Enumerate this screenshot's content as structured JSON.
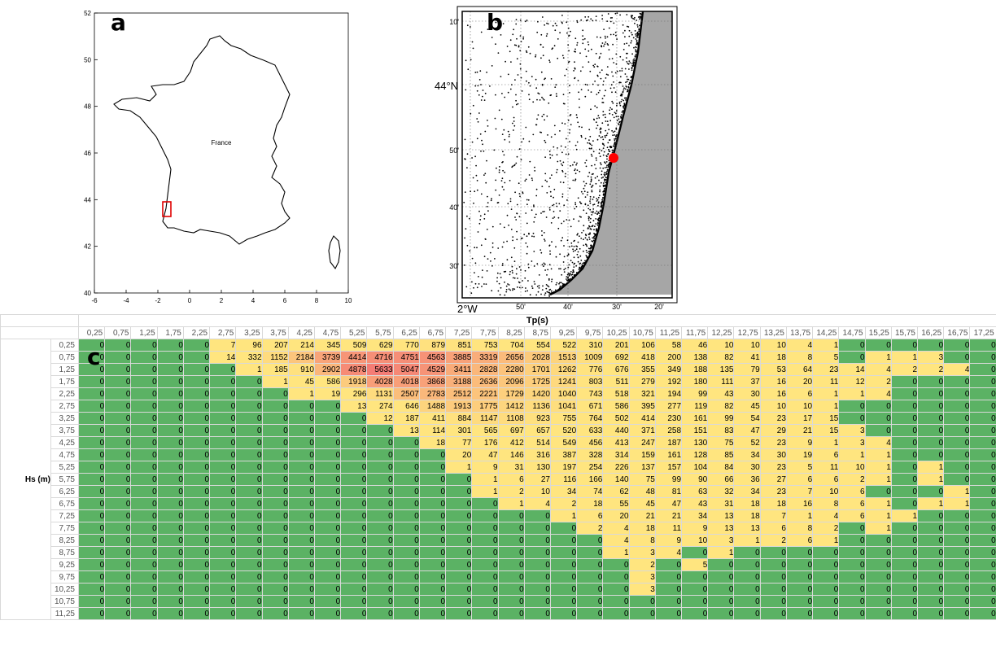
{
  "panels": {
    "a": "a",
    "b": "b",
    "c": "c"
  },
  "mapA": {
    "country_label": "France",
    "x_ticks": [
      "-6",
      "-4",
      "-2",
      "0",
      "2",
      "4",
      "6",
      "8",
      "10"
    ],
    "y_ticks": [
      "40",
      "42",
      "44",
      "46",
      "48",
      "50",
      "52"
    ]
  },
  "mapB": {
    "lat_label_main": "44°N",
    "lat_ticks": [
      "10'",
      "50'",
      "40'",
      "30'"
    ],
    "lon_label_main": "2°W",
    "lon_ticks": [
      "50'",
      "40'",
      "30'",
      "20'"
    ]
  },
  "table": {
    "title": "Tp(s)",
    "row_axis_label": "Hs (m)",
    "tp_values": [
      "0,25",
      "0,75",
      "1,25",
      "1,75",
      "2,25",
      "2,75",
      "3,25",
      "3,75",
      "4,25",
      "4,75",
      "5,25",
      "5,75",
      "6,25",
      "6,75",
      "7,25",
      "7,75",
      "8,25",
      "8,75",
      "9,25",
      "9,75",
      "10,25",
      "10,75",
      "11,25",
      "11,75",
      "12,25",
      "12,75",
      "13,25",
      "13,75",
      "14,25",
      "14,75",
      "15,25",
      "15,75",
      "16,25",
      "16,75",
      "17,25"
    ],
    "hs_values": [
      "0,25",
      "0,75",
      "1,25",
      "1,75",
      "2,25",
      "2,75",
      "3,25",
      "3,75",
      "4,25",
      "4,75",
      "5,25",
      "5,75",
      "6,25",
      "6,75",
      "7,25",
      "7,75",
      "8,25",
      "8,75",
      "9,25",
      "9,75",
      "10,25",
      "10,75",
      "11,25"
    ],
    "rows": [
      [
        0,
        0,
        0,
        0,
        0,
        7,
        96,
        207,
        214,
        345,
        509,
        629,
        770,
        879,
        851,
        753,
        704,
        554,
        522,
        310,
        201,
        106,
        58,
        46,
        10,
        10,
        10,
        4,
        1,
        0,
        0,
        0,
        0,
        0,
        0
      ],
      [
        0,
        0,
        0,
        0,
        0,
        14,
        332,
        1152,
        2184,
        3739,
        4414,
        4716,
        4751,
        4563,
        3885,
        3319,
        2656,
        2028,
        1513,
        1009,
        692,
        418,
        200,
        138,
        82,
        41,
        18,
        8,
        5,
        0,
        1,
        1,
        3,
        0,
        0
      ],
      [
        0,
        0,
        0,
        0,
        0,
        0,
        1,
        185,
        910,
        2902,
        4878,
        5633,
        5047,
        4529,
        3411,
        2828,
        2280,
        1701,
        1262,
        776,
        676,
        355,
        349,
        188,
        135,
        79,
        53,
        64,
        23,
        14,
        4,
        2,
        2,
        4,
        0
      ],
      [
        0,
        0,
        0,
        0,
        0,
        0,
        0,
        1,
        45,
        586,
        1918,
        4028,
        4018,
        3868,
        3188,
        2636,
        2096,
        1725,
        1241,
        803,
        511,
        279,
        192,
        180,
        111,
        37,
        16,
        20,
        11,
        12,
        2,
        0,
        0,
        0,
        0
      ],
      [
        0,
        0,
        0,
        0,
        0,
        0,
        0,
        0,
        1,
        19,
        296,
        1131,
        2507,
        2783,
        2512,
        2221,
        1729,
        1420,
        1040,
        743,
        518,
        321,
        194,
        99,
        43,
        30,
        16,
        6,
        1,
        1,
        4,
        0,
        0,
        0,
        0
      ],
      [
        0,
        0,
        0,
        0,
        0,
        0,
        0,
        0,
        0,
        0,
        13,
        274,
        646,
        1488,
        1913,
        1775,
        1412,
        1136,
        1041,
        671,
        586,
        395,
        277,
        119,
        82,
        45,
        10,
        10,
        1,
        0,
        0,
        0,
        0,
        0,
        0
      ],
      [
        0,
        0,
        0,
        0,
        0,
        0,
        0,
        0,
        0,
        0,
        0,
        12,
        187,
        411,
        884,
        1147,
        1108,
        923,
        755,
        764,
        502,
        414,
        230,
        161,
        99,
        54,
        23,
        17,
        15,
        0,
        0,
        0,
        0,
        0,
        0
      ],
      [
        0,
        0,
        0,
        0,
        0,
        0,
        0,
        0,
        0,
        0,
        0,
        0,
        13,
        114,
        301,
        565,
        697,
        657,
        520,
        633,
        440,
        371,
        258,
        151,
        83,
        47,
        29,
        21,
        15,
        3,
        0,
        0,
        0,
        0,
        0
      ],
      [
        0,
        0,
        0,
        0,
        0,
        0,
        0,
        0,
        0,
        0,
        0,
        0,
        0,
        18,
        77,
        176,
        412,
        514,
        549,
        456,
        413,
        247,
        187,
        130,
        75,
        52,
        23,
        9,
        1,
        3,
        4,
        0,
        0,
        0,
        0
      ],
      [
        0,
        0,
        0,
        0,
        0,
        0,
        0,
        0,
        0,
        0,
        0,
        0,
        0,
        0,
        20,
        47,
        146,
        316,
        387,
        328,
        314,
        159,
        161,
        128,
        85,
        34,
        30,
        19,
        6,
        1,
        1,
        0,
        0,
        0,
        0
      ],
      [
        0,
        0,
        0,
        0,
        0,
        0,
        0,
        0,
        0,
        0,
        0,
        0,
        0,
        0,
        1,
        9,
        31,
        130,
        197,
        254,
        226,
        137,
        157,
        104,
        84,
        30,
        23,
        5,
        11,
        10,
        1,
        0,
        1,
        0,
        0
      ],
      [
        0,
        0,
        0,
        0,
        0,
        0,
        0,
        0,
        0,
        0,
        0,
        0,
        0,
        0,
        0,
        1,
        6,
        27,
        116,
        166,
        140,
        75,
        99,
        90,
        66,
        36,
        27,
        6,
        6,
        2,
        1,
        0,
        1,
        0,
        0
      ],
      [
        0,
        0,
        0,
        0,
        0,
        0,
        0,
        0,
        0,
        0,
        0,
        0,
        0,
        0,
        0,
        1,
        2,
        10,
        34,
        74,
        62,
        48,
        81,
        63,
        32,
        34,
        23,
        7,
        10,
        6,
        0,
        0,
        0,
        1,
        0
      ],
      [
        0,
        0,
        0,
        0,
        0,
        0,
        0,
        0,
        0,
        0,
        0,
        0,
        0,
        0,
        0,
        0,
        1,
        4,
        2,
        18,
        55,
        45,
        47,
        43,
        31,
        18,
        18,
        16,
        8,
        6,
        1,
        0,
        1,
        1,
        0
      ],
      [
        0,
        0,
        0,
        0,
        0,
        0,
        0,
        0,
        0,
        0,
        0,
        0,
        0,
        0,
        0,
        0,
        0,
        0,
        1,
        6,
        20,
        21,
        21,
        34,
        13,
        18,
        7,
        1,
        4,
        6,
        1,
        1,
        0,
        0,
        0
      ],
      [
        0,
        0,
        0,
        0,
        0,
        0,
        0,
        0,
        0,
        0,
        0,
        0,
        0,
        0,
        0,
        0,
        0,
        0,
        0,
        2,
        4,
        18,
        11,
        9,
        13,
        13,
        6,
        8,
        2,
        0,
        1,
        0,
        0,
        0,
        0
      ],
      [
        0,
        0,
        0,
        0,
        0,
        0,
        0,
        0,
        0,
        0,
        0,
        0,
        0,
        0,
        0,
        0,
        0,
        0,
        0,
        0,
        4,
        8,
        9,
        10,
        3,
        1,
        2,
        6,
        1,
        0,
        0,
        0,
        0,
        0,
        0
      ],
      [
        0,
        0,
        0,
        0,
        0,
        0,
        0,
        0,
        0,
        0,
        0,
        0,
        0,
        0,
        0,
        0,
        0,
        0,
        0,
        0,
        1,
        3,
        4,
        0,
        1,
        0,
        0,
        0,
        0,
        0,
        0,
        0,
        0,
        0,
        0
      ],
      [
        0,
        0,
        0,
        0,
        0,
        0,
        0,
        0,
        0,
        0,
        0,
        0,
        0,
        0,
        0,
        0,
        0,
        0,
        0,
        0,
        0,
        2,
        0,
        5,
        0,
        0,
        0,
        0,
        0,
        0,
        0,
        0,
        0,
        0,
        0
      ],
      [
        0,
        0,
        0,
        0,
        0,
        0,
        0,
        0,
        0,
        0,
        0,
        0,
        0,
        0,
        0,
        0,
        0,
        0,
        0,
        0,
        0,
        3,
        0,
        0,
        0,
        0,
        0,
        0,
        0,
        0,
        0,
        0,
        0,
        0,
        0
      ],
      [
        0,
        0,
        0,
        0,
        0,
        0,
        0,
        0,
        0,
        0,
        0,
        0,
        0,
        0,
        0,
        0,
        0,
        0,
        0,
        0,
        0,
        3,
        0,
        0,
        0,
        0,
        0,
        0,
        0,
        0,
        0,
        0,
        0,
        0,
        0
      ],
      [
        0,
        0,
        0,
        0,
        0,
        0,
        0,
        0,
        0,
        0,
        0,
        0,
        0,
        0,
        0,
        0,
        0,
        0,
        0,
        0,
        0,
        0,
        0,
        0,
        0,
        0,
        0,
        0,
        0,
        0,
        0,
        0,
        0,
        0,
        0
      ],
      [
        0,
        0,
        0,
        0,
        0,
        0,
        0,
        0,
        0,
        0,
        0,
        0,
        0,
        0,
        0,
        0,
        0,
        0,
        0,
        0,
        0,
        0,
        0,
        0,
        0,
        0,
        0,
        0,
        0,
        0,
        0,
        0,
        0,
        0,
        0
      ]
    ]
  },
  "colors": {
    "zero": "#5bb264",
    "low": "#ffe57f",
    "mid": "#fbbd7d",
    "high": "#f47c75"
  }
}
